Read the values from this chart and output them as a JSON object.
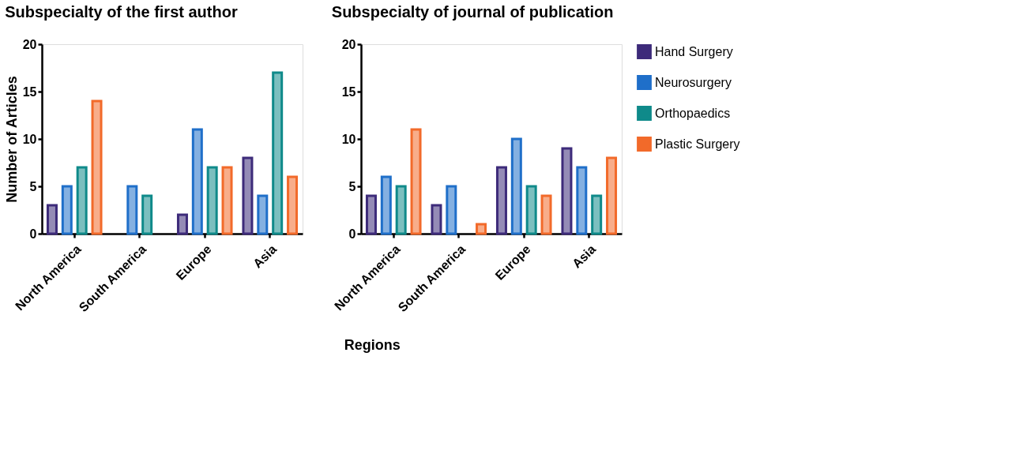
{
  "chart_data": [
    {
      "type": "bar",
      "title": "Subspecialty of the first author",
      "xlabel": "Regions",
      "ylabel": "Number of Articles",
      "categories": [
        "North America",
        "South America",
        "Europe",
        "Asia"
      ],
      "ylim": [
        0,
        20
      ],
      "yticks": [
        0,
        5,
        10,
        15,
        20
      ],
      "grid": false,
      "legend": "top right",
      "series": [
        {
          "name": "Hand Surgery",
          "color": "#3d2b7a",
          "values": [
            3,
            null,
            2,
            8
          ]
        },
        {
          "name": "Neurosurgery",
          "color": "#1f6fc9",
          "values": [
            5,
            5,
            11,
            4
          ]
        },
        {
          "name": "Orthopaedics",
          "color": "#0f8a8a",
          "values": [
            7,
            4,
            7,
            17
          ]
        },
        {
          "name": "Plastic Surgery",
          "color": "#f26a2a",
          "values": [
            14,
            null,
            7,
            6
          ]
        }
      ]
    },
    {
      "type": "bar",
      "title": "Subspecialty of  journal of publication",
      "categories": [
        "North America",
        "South America",
        "Europe",
        "Asia"
      ],
      "ylim": [
        0,
        20
      ],
      "yticks": [
        0,
        5,
        10,
        15,
        20
      ],
      "grid": false,
      "legend": "top right",
      "series": [
        {
          "name": "Hand Surgery",
          "color": "#3d2b7a",
          "values": [
            4,
            3,
            7,
            9
          ]
        },
        {
          "name": "Neurosurgery",
          "color": "#1f6fc9",
          "values": [
            6,
            5,
            10,
            7
          ]
        },
        {
          "name": "Orthopaedics",
          "color": "#0f8a8a",
          "values": [
            5,
            null,
            5,
            4
          ]
        },
        {
          "name": "Plastic Surgery",
          "color": "#f26a2a",
          "values": [
            11,
            1,
            4,
            8
          ]
        }
      ]
    }
  ]
}
